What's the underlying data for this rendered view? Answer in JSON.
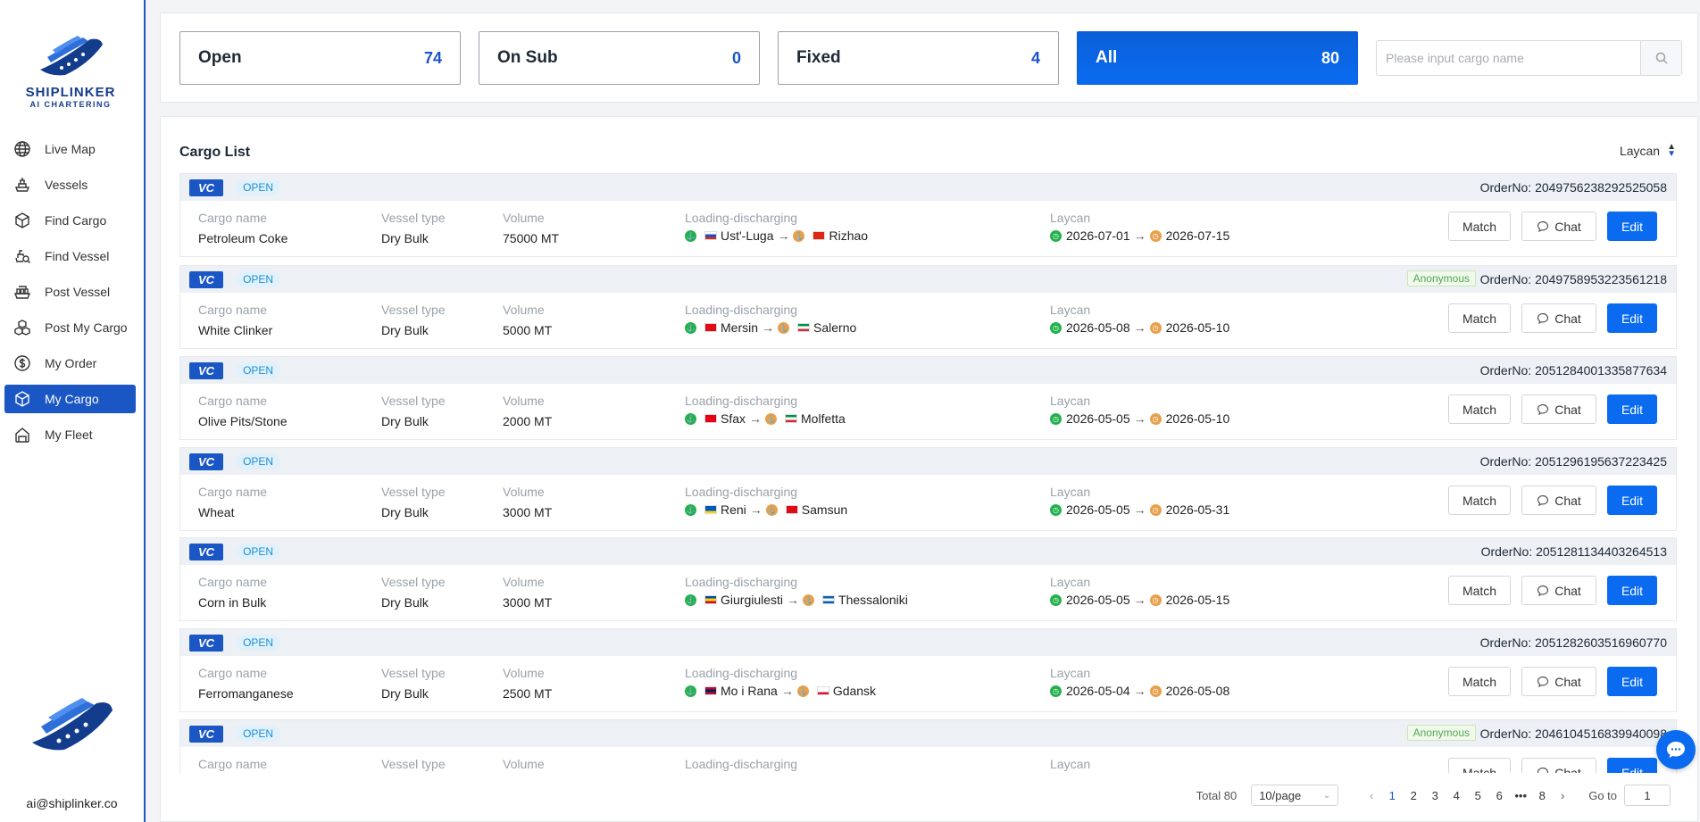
{
  "brand": {
    "name": "SHIPLINKER",
    "tagline": "AI CHARTERING",
    "email": "ai@shiplinker.co"
  },
  "sidebar": {
    "items": [
      {
        "label": "Live Map",
        "icon": "globe-icon",
        "active": false
      },
      {
        "label": "Vessels",
        "icon": "ship-icon",
        "active": false
      },
      {
        "label": "Find Cargo",
        "icon": "box-icon",
        "active": false
      },
      {
        "label": "Find Vessel",
        "icon": "vessel-search-icon",
        "active": false
      },
      {
        "label": "Post Vessel",
        "icon": "cargo-ship-icon",
        "active": false
      },
      {
        "label": "Post My Cargo",
        "icon": "boxes-icon",
        "active": false
      },
      {
        "label": "My Order",
        "icon": "dollar-icon",
        "active": false
      },
      {
        "label": "My Cargo",
        "icon": "cube-icon",
        "active": true
      },
      {
        "label": "My Fleet",
        "icon": "fleet-icon",
        "active": false
      }
    ]
  },
  "tabs": [
    {
      "label": "Open",
      "count": "74"
    },
    {
      "label": "On Sub",
      "count": "0"
    },
    {
      "label": "Fixed",
      "count": "4"
    },
    {
      "label": "All",
      "count": "80"
    }
  ],
  "search": {
    "placeholder": "Please input cargo name"
  },
  "list": {
    "title": "Cargo List",
    "sort_label": "Laycan",
    "labels": {
      "type": "VC",
      "status": "OPEN",
      "orderno": "OrderNo:",
      "anonymous": "Anonymous",
      "cargo_name": "Cargo name",
      "vessel_type": "Vessel type",
      "volume": "Volume",
      "loading": "Loading-discharging",
      "laycan": "Laycan",
      "match": "Match",
      "chat": "Chat",
      "edit": "Edit"
    },
    "rows": [
      {
        "order": "2049756238292525058",
        "anonymous": false,
        "cargo": "Petroleum Coke",
        "vessel": "Dry Bulk",
        "volume": "75000 MT",
        "from": "Ust'-Luga",
        "to": "Rizhao",
        "from_flag": [
          "#ffffff",
          "#1c4fc4",
          "#d52b1e"
        ],
        "to_flag": [
          "#de2910",
          "#de2910",
          "#de2910"
        ],
        "lay_from": "2026-07-01",
        "lay_to": "2026-07-15"
      },
      {
        "order": "2049758953223561218",
        "anonymous": true,
        "cargo": "White Clinker",
        "vessel": "Dry Bulk",
        "volume": "5000 MT",
        "from": "Mersin",
        "to": "Salerno",
        "from_flag": [
          "#e30a17",
          "#e30a17",
          "#e30a17"
        ],
        "to_flag": [
          "#009246",
          "#ffffff",
          "#ce2b37"
        ],
        "lay_from": "2026-05-08",
        "lay_to": "2026-05-10"
      },
      {
        "order": "2051284001335877634",
        "anonymous": false,
        "cargo": "Olive Pits/Stone",
        "vessel": "Dry Bulk",
        "volume": "2000 MT",
        "from": "Sfax",
        "to": "Molfetta",
        "from_flag": [
          "#e70013",
          "#e70013",
          "#e70013"
        ],
        "to_flag": [
          "#009246",
          "#ffffff",
          "#ce2b37"
        ],
        "lay_from": "2026-05-05",
        "lay_to": "2026-05-10"
      },
      {
        "order": "2051296195637223425",
        "anonymous": false,
        "cargo": "Wheat",
        "vessel": "Dry Bulk",
        "volume": "3000 MT",
        "from": "Reni",
        "to": "Samsun",
        "from_flag": [
          "#0057b7",
          "#0057b7",
          "#ffd700"
        ],
        "to_flag": [
          "#e30a17",
          "#e30a17",
          "#e30a17"
        ],
        "lay_from": "2026-05-05",
        "lay_to": "2026-05-31"
      },
      {
        "order": "2051281134403264513",
        "anonymous": false,
        "cargo": "Corn in Bulk",
        "vessel": "Dry Bulk",
        "volume": "3000 MT",
        "from": "Giurgiulesti",
        "to": "Thessaloniki",
        "from_flag": [
          "#0046ae",
          "#ffd200",
          "#cc092f"
        ],
        "to_flag": [
          "#0d5eaf",
          "#ffffff",
          "#0d5eaf"
        ],
        "lay_from": "2026-05-05",
        "lay_to": "2026-05-15"
      },
      {
        "order": "2051282603516960770",
        "anonymous": false,
        "cargo": "Ferromanganese",
        "vessel": "Dry Bulk",
        "volume": "2500 MT",
        "from": "Mo i Rana",
        "to": "Gdansk",
        "from_flag": [
          "#ba0c2f",
          "#00205b",
          "#ba0c2f"
        ],
        "to_flag": [
          "#ffffff",
          "#ffffff",
          "#dc143c"
        ],
        "lay_from": "2026-05-04",
        "lay_to": "2026-05-08"
      },
      {
        "order": "2046104516839940098",
        "anonymous": true,
        "cargo": "",
        "vessel": "",
        "volume": "",
        "from": "",
        "to": "",
        "from_flag": null,
        "to_flag": null,
        "lay_from": "",
        "lay_to": ""
      }
    ]
  },
  "pagination": {
    "total": "Total 80",
    "page_size": "10/page",
    "pages": [
      "1",
      "2",
      "3",
      "4",
      "5",
      "6",
      "•••",
      "8"
    ],
    "current": "1",
    "goto_label": "Go to",
    "goto_value": "1"
  },
  "colors": {
    "primary": "#1a56c4",
    "accent": "#0a6bf0",
    "loading": "#22b14c",
    "discharging": "#e8a04a"
  }
}
